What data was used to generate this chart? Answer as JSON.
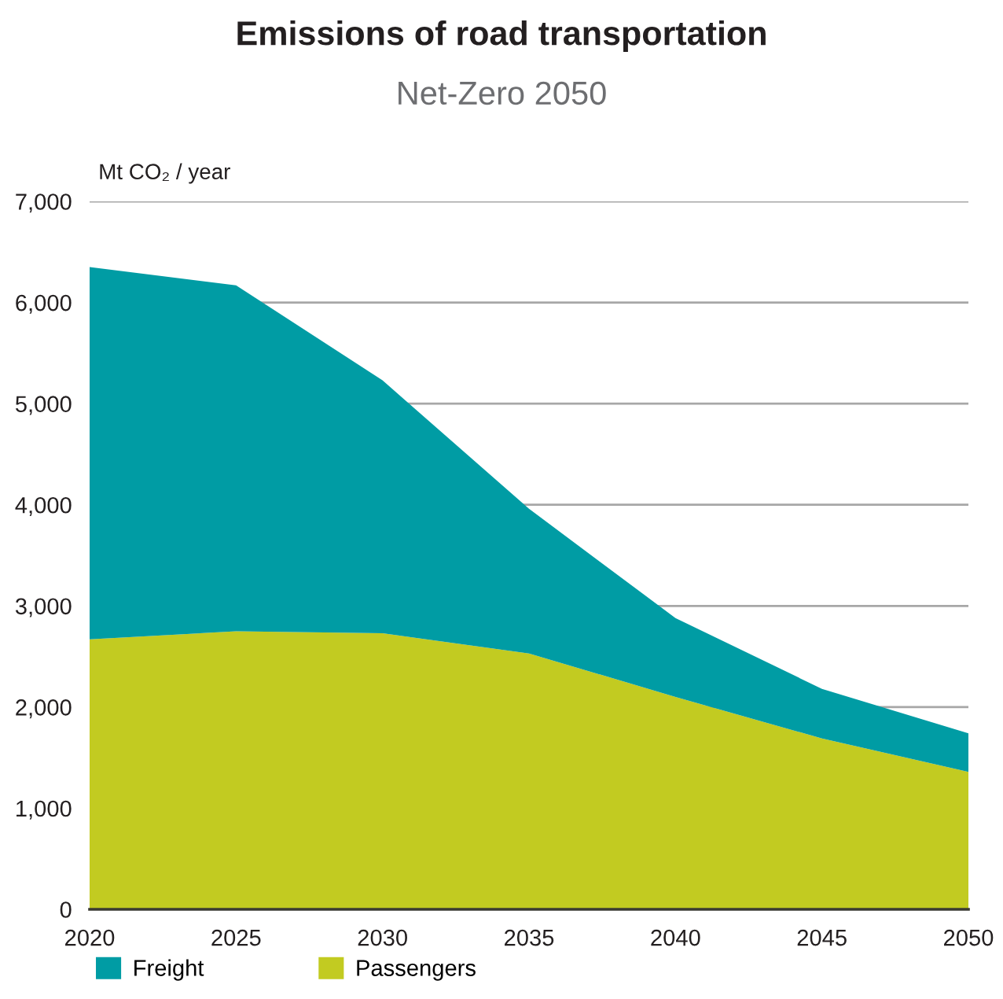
{
  "chart_data": {
    "type": "area",
    "title": "Emissions of road transportation",
    "subtitle": "Net-Zero 2050",
    "ylabel": "Mt CO₂ / year",
    "x": [
      2020,
      2025,
      2030,
      2035,
      2040,
      2045,
      2050
    ],
    "stacked": true,
    "series": [
      {
        "name": "Passengers",
        "color": "#c2cb21",
        "values": [
          2670,
          2750,
          2730,
          2530,
          2100,
          1690,
          1360
        ]
      },
      {
        "name": "Freight",
        "color": "#009ca4",
        "values": [
          3680,
          3420,
          2500,
          1430,
          780,
          490,
          380
        ]
      }
    ],
    "xlim": [
      2020,
      2050
    ],
    "xticks": [
      2020,
      2025,
      2030,
      2035,
      2040,
      2045,
      2050
    ],
    "ylim": [
      0,
      7000
    ],
    "yticks": [
      0,
      {
        "value": 1000,
        "label": "1,000"
      },
      {
        "value": 2000,
        "label": "2,000"
      },
      {
        "value": 3000,
        "label": "3,000"
      },
      {
        "value": 4000,
        "label": "4,000"
      },
      {
        "value": 5000,
        "label": "5,000"
      },
      {
        "value": 6000,
        "label": "6,000"
      },
      {
        "value": 7000,
        "label": "7,000"
      }
    ],
    "grid": "y",
    "legend": "bottom"
  }
}
